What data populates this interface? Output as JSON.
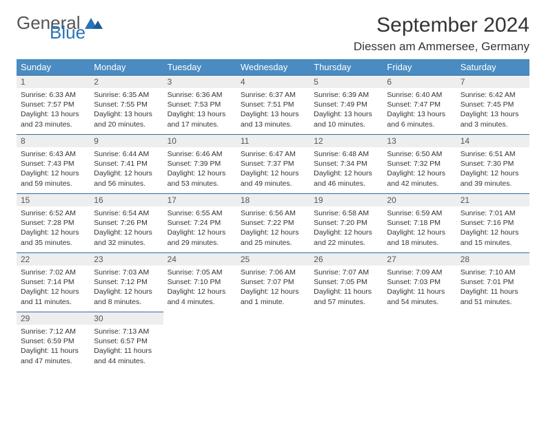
{
  "logo": {
    "word1": "General",
    "word2": "Blue"
  },
  "title": "September 2024",
  "location": "Diessen am Ammersee, Germany",
  "weekdays": [
    "Sunday",
    "Monday",
    "Tuesday",
    "Wednesday",
    "Thursday",
    "Friday",
    "Saturday"
  ],
  "colors": {
    "header_bg": "#4a8bc2",
    "header_text": "#ffffff",
    "daynum_bg": "#eeeeee",
    "rule": "#2b6ca3",
    "logo_blue": "#2874b8"
  },
  "font": {
    "body_size_pt": 10.5,
    "title_size_pt": 30,
    "location_size_pt": 17,
    "header_size_pt": 13
  },
  "days": [
    {
      "n": "1",
      "sunrise": "6:33 AM",
      "sunset": "7:57 PM",
      "daylight": "13 hours and 23 minutes."
    },
    {
      "n": "2",
      "sunrise": "6:35 AM",
      "sunset": "7:55 PM",
      "daylight": "13 hours and 20 minutes."
    },
    {
      "n": "3",
      "sunrise": "6:36 AM",
      "sunset": "7:53 PM",
      "daylight": "13 hours and 17 minutes."
    },
    {
      "n": "4",
      "sunrise": "6:37 AM",
      "sunset": "7:51 PM",
      "daylight": "13 hours and 13 minutes."
    },
    {
      "n": "5",
      "sunrise": "6:39 AM",
      "sunset": "7:49 PM",
      "daylight": "13 hours and 10 minutes."
    },
    {
      "n": "6",
      "sunrise": "6:40 AM",
      "sunset": "7:47 PM",
      "daylight": "13 hours and 6 minutes."
    },
    {
      "n": "7",
      "sunrise": "6:42 AM",
      "sunset": "7:45 PM",
      "daylight": "13 hours and 3 minutes."
    },
    {
      "n": "8",
      "sunrise": "6:43 AM",
      "sunset": "7:43 PM",
      "daylight": "12 hours and 59 minutes."
    },
    {
      "n": "9",
      "sunrise": "6:44 AM",
      "sunset": "7:41 PM",
      "daylight": "12 hours and 56 minutes."
    },
    {
      "n": "10",
      "sunrise": "6:46 AM",
      "sunset": "7:39 PM",
      "daylight": "12 hours and 53 minutes."
    },
    {
      "n": "11",
      "sunrise": "6:47 AM",
      "sunset": "7:37 PM",
      "daylight": "12 hours and 49 minutes."
    },
    {
      "n": "12",
      "sunrise": "6:48 AM",
      "sunset": "7:34 PM",
      "daylight": "12 hours and 46 minutes."
    },
    {
      "n": "13",
      "sunrise": "6:50 AM",
      "sunset": "7:32 PM",
      "daylight": "12 hours and 42 minutes."
    },
    {
      "n": "14",
      "sunrise": "6:51 AM",
      "sunset": "7:30 PM",
      "daylight": "12 hours and 39 minutes."
    },
    {
      "n": "15",
      "sunrise": "6:52 AM",
      "sunset": "7:28 PM",
      "daylight": "12 hours and 35 minutes."
    },
    {
      "n": "16",
      "sunrise": "6:54 AM",
      "sunset": "7:26 PM",
      "daylight": "12 hours and 32 minutes."
    },
    {
      "n": "17",
      "sunrise": "6:55 AM",
      "sunset": "7:24 PM",
      "daylight": "12 hours and 29 minutes."
    },
    {
      "n": "18",
      "sunrise": "6:56 AM",
      "sunset": "7:22 PM",
      "daylight": "12 hours and 25 minutes."
    },
    {
      "n": "19",
      "sunrise": "6:58 AM",
      "sunset": "7:20 PM",
      "daylight": "12 hours and 22 minutes."
    },
    {
      "n": "20",
      "sunrise": "6:59 AM",
      "sunset": "7:18 PM",
      "daylight": "12 hours and 18 minutes."
    },
    {
      "n": "21",
      "sunrise": "7:01 AM",
      "sunset": "7:16 PM",
      "daylight": "12 hours and 15 minutes."
    },
    {
      "n": "22",
      "sunrise": "7:02 AM",
      "sunset": "7:14 PM",
      "daylight": "12 hours and 11 minutes."
    },
    {
      "n": "23",
      "sunrise": "7:03 AM",
      "sunset": "7:12 PM",
      "daylight": "12 hours and 8 minutes."
    },
    {
      "n": "24",
      "sunrise": "7:05 AM",
      "sunset": "7:10 PM",
      "daylight": "12 hours and 4 minutes."
    },
    {
      "n": "25",
      "sunrise": "7:06 AM",
      "sunset": "7:07 PM",
      "daylight": "12 hours and 1 minute."
    },
    {
      "n": "26",
      "sunrise": "7:07 AM",
      "sunset": "7:05 PM",
      "daylight": "11 hours and 57 minutes."
    },
    {
      "n": "27",
      "sunrise": "7:09 AM",
      "sunset": "7:03 PM",
      "daylight": "11 hours and 54 minutes."
    },
    {
      "n": "28",
      "sunrise": "7:10 AM",
      "sunset": "7:01 PM",
      "daylight": "11 hours and 51 minutes."
    },
    {
      "n": "29",
      "sunrise": "7:12 AM",
      "sunset": "6:59 PM",
      "daylight": "11 hours and 47 minutes."
    },
    {
      "n": "30",
      "sunrise": "7:13 AM",
      "sunset": "6:57 PM",
      "daylight": "11 hours and 44 minutes."
    }
  ],
  "labels": {
    "sunrise": "Sunrise:",
    "sunset": "Sunset:",
    "daylight": "Daylight:"
  }
}
